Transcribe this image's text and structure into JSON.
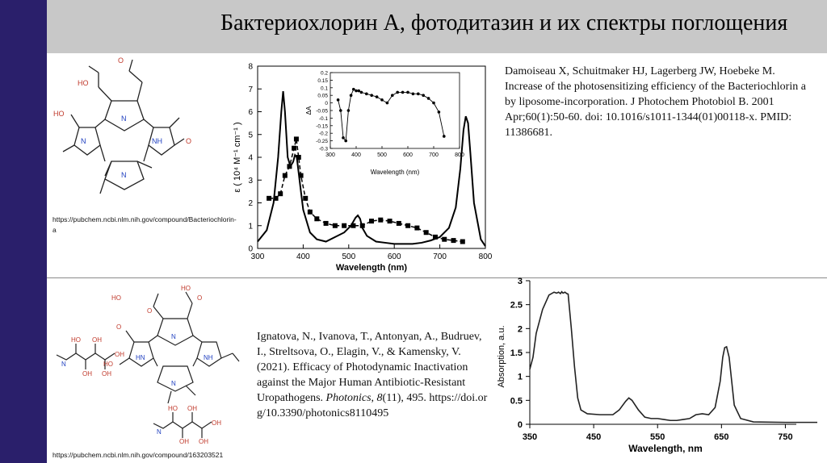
{
  "slide": {
    "title": "Бактериохлорин А, фотодитазин и их спектры поглощения",
    "colors": {
      "sidebar": "#2a1f6b",
      "titlebar": "#c8c8c8"
    }
  },
  "top": {
    "structure_url": "https://pubchem.ncbi.nlm.nih.gov/compound/Bacteriochlorin-a",
    "reference": "Damoiseau X, Schuitmaker HJ, Lagerberg JW, Hoebeke M. Increase of the photosensitizing efficiency of the Bacteriochlorin a by liposome-incorporation. J Photochem Photobiol B. 2001 Apr;60(1):50-60. doi: 10.1016/s1011-1344(01)00118-x. PMID: 11386681."
  },
  "bottom": {
    "structure_url": "https://pubchem.ncbi.nlm.nih.gov/compound/163203521",
    "reference": {
      "authors": "Ignatova, N., Ivanova, T., Antonyan, A., Budruev, I., Streltsova, O., Elagin, V., & Kamensky, V. (2021). Efficacy of Photodynamic Inactivation against the Major Human Antibiotic-Resistant Uropathogens.",
      "journal": "Photonics",
      "volume": "8",
      "issue_pages": "(11), 495.",
      "doi": "https://doi.org/10.3390/photonics8110495"
    }
  },
  "chart_data": [
    {
      "type": "line",
      "xlabel": "Wavelength (nm)",
      "ylabel": "ε ( 10⁴ M⁻¹ cm⁻¹ )",
      "xlim": [
        300,
        800
      ],
      "ylim": [
        0,
        8
      ],
      "xticks": [
        "300",
        "400",
        "500",
        "600",
        "700",
        "800"
      ],
      "yticks": [
        "0",
        "1",
        "2",
        "3",
        "4",
        "5",
        "6",
        "7",
        "8"
      ],
      "series": [
        {
          "style": "solid",
          "x": [
            300,
            320,
            335,
            345,
            352,
            356,
            360,
            366,
            372,
            378,
            382,
            386,
            392,
            400,
            415,
            430,
            450,
            470,
            490,
            505,
            515,
            520,
            525,
            530,
            540,
            560,
            580,
            600,
            620,
            640,
            660,
            680,
            700,
            720,
            735,
            745,
            752,
            757,
            762,
            767,
            775,
            790,
            800
          ],
          "y": [
            0.3,
            0.8,
            2.0,
            4.0,
            6.0,
            6.9,
            6.0,
            4.0,
            3.6,
            3.8,
            4.1,
            4.0,
            3.0,
            1.7,
            0.7,
            0.4,
            0.3,
            0.5,
            0.7,
            1.0,
            1.35,
            1.45,
            1.3,
            0.9,
            0.55,
            0.3,
            0.25,
            0.2,
            0.2,
            0.2,
            0.25,
            0.35,
            0.5,
            0.9,
            1.8,
            3.5,
            5.2,
            5.8,
            5.5,
            4.2,
            2.0,
            0.4,
            0.1
          ]
        },
        {
          "style": "dashed-squares",
          "x": [
            325,
            340,
            350,
            360,
            370,
            380,
            385,
            390,
            395,
            405,
            415,
            430,
            450,
            470,
            490,
            510,
            530,
            550,
            570,
            590,
            610,
            630,
            650,
            670,
            690,
            710,
            730,
            750
          ],
          "y": [
            2.2,
            2.2,
            2.4,
            3.2,
            3.6,
            4.4,
            4.8,
            4.0,
            3.2,
            2.2,
            1.6,
            1.3,
            1.1,
            1.0,
            1.0,
            1.0,
            1.0,
            1.2,
            1.25,
            1.2,
            1.1,
            1.0,
            0.9,
            0.7,
            0.5,
            0.4,
            0.35,
            0.3
          ]
        }
      ]
    },
    {
      "type": "scatter",
      "xlabel": "Wavelength (nm)",
      "ylabel": "ΔA",
      "xlim": [
        300,
        800
      ],
      "ylim": [
        -0.3,
        0.2
      ],
      "xticks": [
        "300",
        "400",
        "500",
        "600",
        "700",
        "800"
      ],
      "yticks": [
        "0.2",
        "0.15",
        "0.1",
        "0.05",
        "0",
        "-0.05",
        "-0.1",
        "-0.15",
        "-0.2",
        "-0.25",
        "-0.3"
      ],
      "x": [
        330,
        340,
        350,
        360,
        370,
        380,
        390,
        400,
        410,
        420,
        440,
        460,
        480,
        500,
        520,
        540,
        560,
        580,
        600,
        620,
        640,
        660,
        680,
        700,
        720,
        740
      ],
      "y": [
        0.02,
        -0.05,
        -0.23,
        -0.25,
        -0.05,
        0.05,
        0.09,
        0.08,
        0.08,
        0.07,
        0.06,
        0.05,
        0.04,
        0.02,
        0.0,
        0.05,
        0.07,
        0.07,
        0.07,
        0.06,
        0.06,
        0.05,
        0.03,
        0.0,
        -0.06,
        -0.22
      ]
    },
    {
      "type": "line",
      "xlabel": "Wavelength, nm",
      "ylabel": "Absorption, a.u.",
      "xlim": [
        350,
        800
      ],
      "ylim": [
        0,
        3
      ],
      "xticks": [
        "350",
        "450",
        "550",
        "650",
        "750"
      ],
      "yticks": [
        "0",
        "0.5",
        "1",
        "1.5",
        "2",
        "2.5",
        "3"
      ],
      "series": [
        {
          "style": "solid",
          "x": [
            350,
            355,
            360,
            370,
            380,
            388,
            392,
            395,
            398,
            400,
            402,
            405,
            408,
            410,
            415,
            420,
            425,
            430,
            440,
            460,
            480,
            490,
            500,
            505,
            510,
            520,
            530,
            540,
            550,
            560,
            570,
            580,
            590,
            600,
            610,
            620,
            630,
            640,
            648,
            652,
            655,
            658,
            662,
            666,
            670,
            680,
            700,
            750,
            800
          ],
          "y": [
            1.15,
            1.4,
            1.9,
            2.4,
            2.7,
            2.76,
            2.74,
            2.76,
            2.73,
            2.77,
            2.74,
            2.76,
            2.73,
            2.72,
            2.0,
            1.2,
            0.55,
            0.3,
            0.22,
            0.2,
            0.2,
            0.3,
            0.48,
            0.55,
            0.5,
            0.3,
            0.15,
            0.12,
            0.12,
            0.1,
            0.08,
            0.08,
            0.1,
            0.12,
            0.2,
            0.22,
            0.2,
            0.35,
            0.9,
            1.4,
            1.6,
            1.62,
            1.4,
            0.9,
            0.4,
            0.12,
            0.05,
            0.04,
            0.04
          ]
        }
      ]
    }
  ]
}
